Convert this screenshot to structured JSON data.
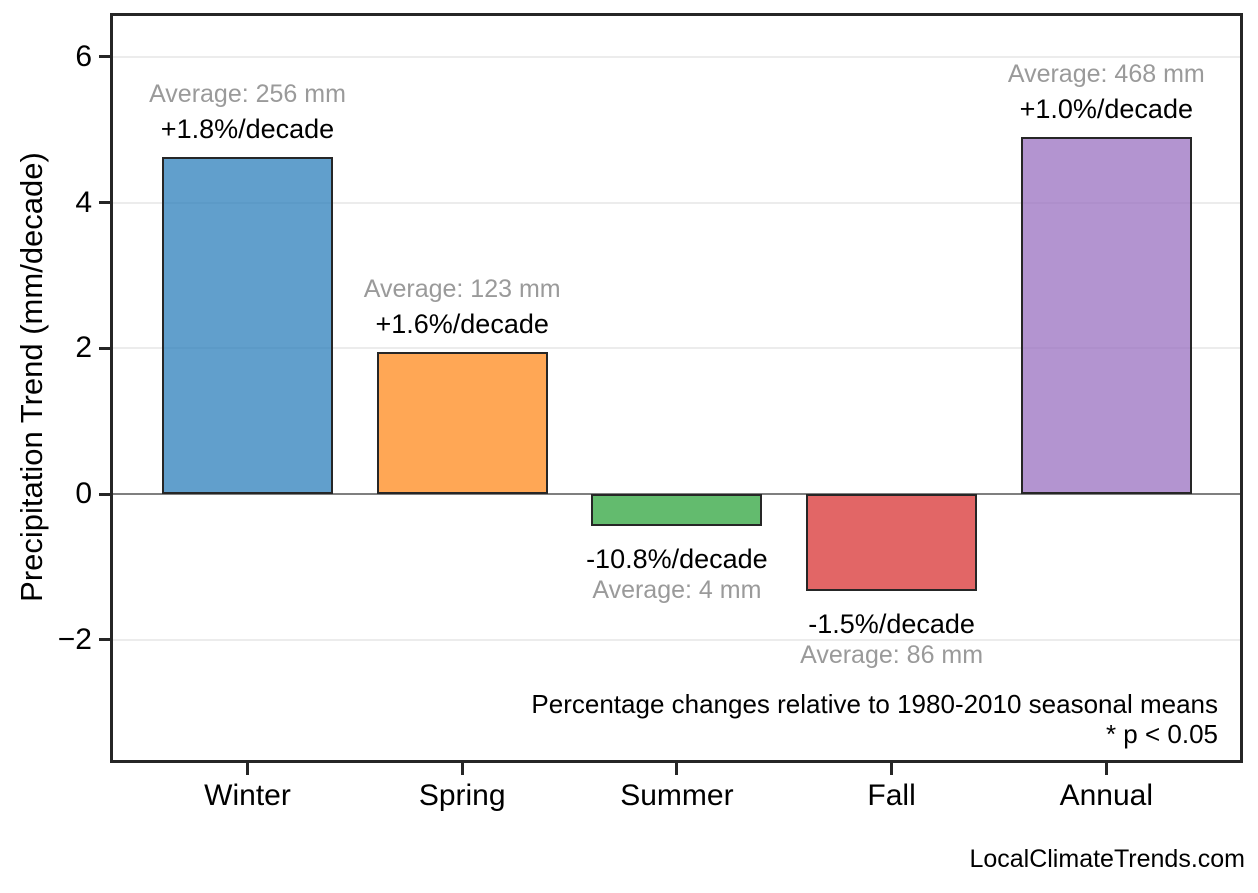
{
  "chart_data": {
    "type": "bar",
    "title": "",
    "xlabel": "",
    "ylabel": "Precipitation Trend (mm/decade)",
    "categories": [
      "Winter",
      "Spring",
      "Summer",
      "Fall",
      "Annual"
    ],
    "values": [
      4.62,
      1.95,
      -0.44,
      -1.33,
      4.9
    ],
    "bar_colors": [
      "rgba(44,127,187,0.75)",
      "rgba(255,137,28,0.75)",
      "rgba(47,164,61,0.75)",
      "rgba(216,51,51,0.75)",
      "rgba(153,112,192,0.75)"
    ],
    "bar_edge_color": "#262626",
    "pct_labels": [
      "+1.8%/decade",
      "+1.6%/decade",
      "-10.8%/decade",
      "-1.5%/decade",
      "+1.0%/decade"
    ],
    "avg_labels": [
      "Average: 256 mm",
      "Average: 123 mm",
      "Average: 4 mm",
      "Average: 86 mm",
      "Average: 468 mm"
    ],
    "yticks": [
      -2,
      0,
      2,
      4,
      6
    ],
    "ylim": [
      -3.69,
      6.6
    ],
    "grid": true,
    "legend_position": "none",
    "annotations": {
      "line1": "Percentage changes relative to 1980-2010 seasonal means",
      "line2": "* p < 0.05"
    }
  },
  "watermark": "LocalClimateTrends.com",
  "colors": {
    "grid": "#ececec",
    "zero_line": "#7f7f7f",
    "frame": "#262626",
    "avg_text": "#9a9a9a",
    "pct_text": "#000000",
    "background": "#ffffff"
  }
}
